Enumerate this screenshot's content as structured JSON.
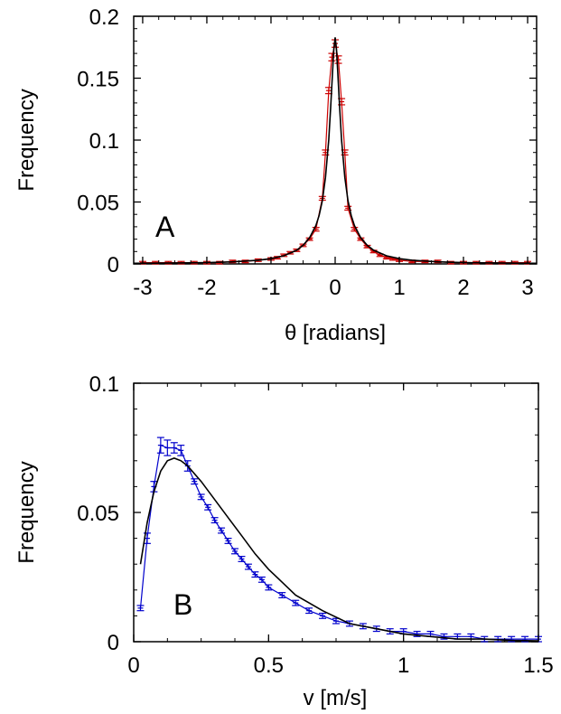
{
  "chart_data": [
    {
      "type": "line",
      "panel_label": "A",
      "xlabel": "θ [radians]",
      "ylabel": "Frequency",
      "xlim": [
        -3.14,
        3.14
      ],
      "ylim": [
        0,
        0.2
      ],
      "xticks": [
        -3,
        -2,
        -1,
        0,
        1,
        2,
        3
      ],
      "xtick_labels": [
        "-3",
        "-2",
        "-1",
        "0",
        "1",
        "2",
        "3"
      ],
      "yticks": [
        0,
        0.05,
        0.1,
        0.15,
        0.2
      ],
      "ytick_labels": [
        "0",
        "0.05",
        "0.1",
        "0.15",
        "0.2"
      ],
      "grid": false,
      "series": [
        {
          "style": "points-with-error-bars-and-line",
          "color": "#cc0000",
          "x": [
            -3.0,
            -2.8,
            -2.6,
            -2.4,
            -2.2,
            -2.0,
            -1.8,
            -1.6,
            -1.4,
            -1.2,
            -1.0,
            -0.9,
            -0.8,
            -0.7,
            -0.6,
            -0.5,
            -0.4,
            -0.3,
            -0.2,
            -0.15,
            -0.1,
            -0.05,
            0.0,
            0.05,
            0.1,
            0.15,
            0.2,
            0.3,
            0.4,
            0.5,
            0.6,
            0.7,
            0.8,
            0.9,
            1.0,
            1.2,
            1.4,
            1.6,
            1.8,
            2.0,
            2.2,
            2.4,
            2.6,
            2.8,
            3.0
          ],
          "y": [
            0.001,
            0.001,
            0.001,
            0.001,
            0.001,
            0.001,
            0.001,
            0.002,
            0.002,
            0.003,
            0.004,
            0.005,
            0.007,
            0.009,
            0.011,
            0.015,
            0.02,
            0.028,
            0.053,
            0.09,
            0.14,
            0.167,
            0.178,
            0.165,
            0.131,
            0.09,
            0.045,
            0.028,
            0.02,
            0.014,
            0.01,
            0.007,
            0.005,
            0.004,
            0.003,
            0.002,
            0.002,
            0.002,
            0.001,
            0.001,
            0.001,
            0.001,
            0.001,
            0.001,
            0.001
          ],
          "err": [
            0.001,
            0.001,
            0.001,
            0.001,
            0.001,
            0.001,
            0.001,
            0.001,
            0.001,
            0.001,
            0.001,
            0.001,
            0.001,
            0.001,
            0.001,
            0.001,
            0.001,
            0.0015,
            0.0015,
            0.002,
            0.0025,
            0.003,
            0.003,
            0.003,
            0.0025,
            0.002,
            0.0015,
            0.0015,
            0.001,
            0.001,
            0.001,
            0.001,
            0.001,
            0.001,
            0.001,
            0.001,
            0.001,
            0.001,
            0.001,
            0.001,
            0.001,
            0.001,
            0.001,
            0.001,
            0.001
          ]
        },
        {
          "style": "line",
          "color": "#000000",
          "x": [
            -3.14,
            -2.8,
            -2.4,
            -2.0,
            -1.6,
            -1.2,
            -1.0,
            -0.8,
            -0.6,
            -0.5,
            -0.4,
            -0.3,
            -0.25,
            -0.2,
            -0.15,
            -0.1,
            -0.07,
            -0.04,
            -0.02,
            0.0,
            0.02,
            0.04,
            0.07,
            0.1,
            0.15,
            0.2,
            0.25,
            0.3,
            0.4,
            0.5,
            0.6,
            0.8,
            1.0,
            1.2,
            1.6,
            2.0,
            2.4,
            2.8,
            3.14
          ],
          "y": [
            0.0005,
            0.0006,
            0.0008,
            0.0011,
            0.0017,
            0.003,
            0.0042,
            0.0066,
            0.011,
            0.015,
            0.021,
            0.031,
            0.039,
            0.051,
            0.07,
            0.1,
            0.126,
            0.156,
            0.174,
            0.183,
            0.174,
            0.156,
            0.126,
            0.1,
            0.07,
            0.051,
            0.039,
            0.031,
            0.021,
            0.015,
            0.011,
            0.0066,
            0.0042,
            0.003,
            0.0017,
            0.0011,
            0.0008,
            0.0006,
            0.0005
          ]
        }
      ]
    },
    {
      "type": "line",
      "panel_label": "B",
      "xlabel": "v [m/s]",
      "ylabel": "Frequency",
      "xlim": [
        0,
        1.5
      ],
      "ylim": [
        0,
        0.1
      ],
      "xticks": [
        0,
        0.5,
        1,
        1.5
      ],
      "xtick_labels": [
        "0",
        "0.5",
        "1",
        "1.5"
      ],
      "yticks": [
        0,
        0.05,
        0.1
      ],
      "ytick_labels": [
        "0",
        "0.05",
        "0.1"
      ],
      "grid": false,
      "series": [
        {
          "style": "points-with-error-bars-and-line",
          "color": "#0000cc",
          "x": [
            0.025,
            0.05,
            0.075,
            0.1,
            0.125,
            0.15,
            0.175,
            0.2,
            0.225,
            0.25,
            0.275,
            0.3,
            0.325,
            0.35,
            0.375,
            0.4,
            0.425,
            0.45,
            0.475,
            0.5,
            0.55,
            0.6,
            0.65,
            0.7,
            0.75,
            0.8,
            0.85,
            0.9,
            0.95,
            1.0,
            1.05,
            1.1,
            1.15,
            1.2,
            1.25,
            1.3,
            1.35,
            1.4,
            1.45,
            1.5
          ],
          "y": [
            0.013,
            0.04,
            0.06,
            0.076,
            0.075,
            0.075,
            0.074,
            0.068,
            0.062,
            0.056,
            0.052,
            0.047,
            0.043,
            0.039,
            0.035,
            0.032,
            0.029,
            0.026,
            0.024,
            0.021,
            0.018,
            0.015,
            0.012,
            0.01,
            0.008,
            0.007,
            0.006,
            0.005,
            0.004,
            0.004,
            0.003,
            0.003,
            0.002,
            0.002,
            0.002,
            0.001,
            0.001,
            0.001,
            0.001,
            0.001
          ],
          "err": [
            0.001,
            0.002,
            0.002,
            0.003,
            0.003,
            0.002,
            0.002,
            0.002,
            0.001,
            0.001,
            0.001,
            0.001,
            0.001,
            0.001,
            0.001,
            0.001,
            0.001,
            0.001,
            0.001,
            0.001,
            0.001,
            0.001,
            0.001,
            0.001,
            0.001,
            0.001,
            0.001,
            0.001,
            0.001,
            0.001,
            0.001,
            0.001,
            0.001,
            0.001,
            0.001,
            0.001,
            0.001,
            0.001,
            0.001,
            0.001
          ]
        },
        {
          "style": "line",
          "color": "#000000",
          "x": [
            0.025,
            0.05,
            0.075,
            0.1,
            0.125,
            0.15,
            0.175,
            0.2,
            0.25,
            0.3,
            0.35,
            0.4,
            0.45,
            0.5,
            0.55,
            0.6,
            0.7,
            0.8,
            0.9,
            1.0,
            1.1,
            1.2,
            1.3,
            1.4,
            1.5
          ],
          "y": [
            0.03,
            0.046,
            0.058,
            0.066,
            0.07,
            0.071,
            0.07,
            0.068,
            0.062,
            0.055,
            0.048,
            0.041,
            0.034,
            0.028,
            0.023,
            0.018,
            0.012,
            0.007,
            0.005,
            0.003,
            0.002,
            0.001,
            0.001,
            0.0005,
            0.0003
          ]
        }
      ]
    }
  ]
}
